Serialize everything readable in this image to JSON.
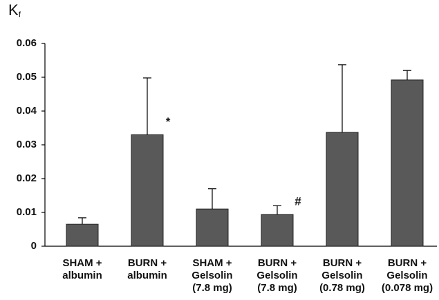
{
  "chart_data": {
    "type": "bar",
    "ylabel_main": "K",
    "ylabel_subscript": "f",
    "categories": [
      [
        "SHAM +",
        "albumin"
      ],
      [
        "BURN +",
        "albumin"
      ],
      [
        "SHAM +",
        "Gelsolin",
        "(7.8 mg)"
      ],
      [
        "BURN +",
        "Gelsolin",
        "(7.8 mg)"
      ],
      [
        "BURN +",
        "Gelsolin",
        "(0.78 mg)"
      ],
      [
        "BURN +",
        "Gelsolin",
        "(0.078 mg)"
      ]
    ],
    "values": [
      0.0065,
      0.033,
      0.011,
      0.0094,
      0.0337,
      0.0492
    ],
    "errors": [
      0.0019,
      0.0168,
      0.006,
      0.0026,
      0.02,
      0.0028
    ],
    "markers": [
      null,
      "*",
      null,
      "#",
      null,
      null
    ],
    "color": "#595959",
    "ylim": [
      0,
      0.06
    ],
    "yticks": [
      0,
      0.01,
      0.02,
      0.03,
      0.04,
      0.05,
      0.06
    ],
    "grid": false
  }
}
